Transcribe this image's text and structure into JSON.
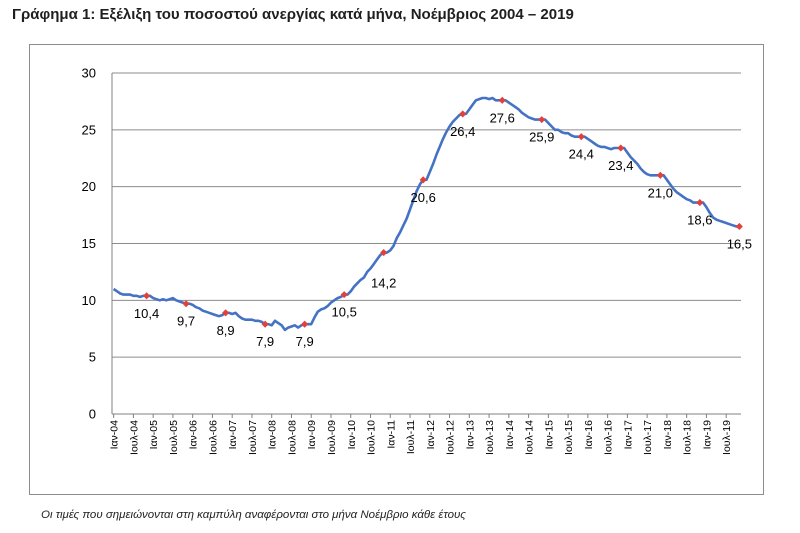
{
  "title": "Γράφημα 1: Εξέλιξη του ποσοστού ανεργίας κατά μήνα, Νοέμβριος 2004 – 2019",
  "note": "Οι τιμές που σημειώνονται στη καμπύλη αναφέρονται στο μήνα Νοέμβριο κάθε έτους",
  "colors": {
    "line": "#4472c4",
    "marker": "#e0413b",
    "grid": "#8c8c8c"
  },
  "chart_data": {
    "type": "line",
    "ylim": [
      0,
      30
    ],
    "yticks": [
      0,
      5,
      10,
      15,
      20,
      25,
      30
    ],
    "grid": true,
    "xtick_labels": [
      "Ιαν-04",
      "Ιουλ-04",
      "Ιαν-05",
      "Ιουλ-05",
      "Ιαν-06",
      "Ιουλ-06",
      "Ιαν-07",
      "Ιουλ-07",
      "Ιαν-08",
      "Ιουλ-08",
      "Ιαν-09",
      "Ιουλ-09",
      "Ιαν-10",
      "Ιουλ-10",
      "Ιαν-11",
      "Ιουλ-11",
      "Ιαν-12",
      "Ιουλ-12",
      "Ιαν-13",
      "Ιουλ-13",
      "Ιαν-14",
      "Ιουλ-14",
      "Ιαν-15",
      "Ιουλ-15",
      "Ιαν-16",
      "Ιουλ-16",
      "Ιαν-17",
      "Ιουλ-17",
      "Ιαν-18",
      "Ιουλ-18",
      "Ιαν-19",
      "Ιουλ-19"
    ],
    "series": [
      {
        "values": [
          11.0,
          10.8,
          10.6,
          10.5,
          10.5,
          10.5,
          10.4,
          10.4,
          10.3,
          10.4,
          10.4,
          10.4,
          10.2,
          10.1,
          10.0,
          10.1,
          10.0,
          10.1,
          10.2,
          10.0,
          9.9,
          9.8,
          9.7,
          9.7,
          9.6,
          9.4,
          9.3,
          9.1,
          9.0,
          8.9,
          8.8,
          8.7,
          8.6,
          8.7,
          8.9,
          8.9,
          8.8,
          8.9,
          8.6,
          8.4,
          8.3,
          8.3,
          8.3,
          8.2,
          8.2,
          8.1,
          7.9,
          7.9,
          7.8,
          8.2,
          8.0,
          7.8,
          7.4,
          7.6,
          7.7,
          7.8,
          7.6,
          7.8,
          7.9,
          7.9,
          7.9,
          8.5,
          9.0,
          9.2,
          9.3,
          9.5,
          9.8,
          10.0,
          10.2,
          10.3,
          10.5,
          10.5,
          10.8,
          11.2,
          11.5,
          11.8,
          12.0,
          12.5,
          12.8,
          13.2,
          13.6,
          14.0,
          14.2,
          14.2,
          14.4,
          14.8,
          15.5,
          16.0,
          16.6,
          17.2,
          18.0,
          18.8,
          19.6,
          20.2,
          20.6,
          20.6,
          21.3,
          22.0,
          22.8,
          23.5,
          24.2,
          24.8,
          25.3,
          25.7,
          26.0,
          26.3,
          26.4,
          26.4,
          26.8,
          27.2,
          27.6,
          27.7,
          27.8,
          27.8,
          27.7,
          27.8,
          27.6,
          27.6,
          27.6,
          27.6,
          27.4,
          27.2,
          27.0,
          26.8,
          26.5,
          26.3,
          26.1,
          26.0,
          25.9,
          25.9,
          25.9,
          25.9,
          25.6,
          25.3,
          25.0,
          25.0,
          24.8,
          24.7,
          24.7,
          24.5,
          24.4,
          24.4,
          24.4,
          24.4,
          24.2,
          24.0,
          23.8,
          23.6,
          23.5,
          23.5,
          23.4,
          23.3,
          23.4,
          23.4,
          23.4,
          23.4,
          23.0,
          22.6,
          22.3,
          22.0,
          21.6,
          21.3,
          21.1,
          21.0,
          21.0,
          21.0,
          21.0,
          21.0,
          20.6,
          20.2,
          19.8,
          19.5,
          19.3,
          19.1,
          18.9,
          18.8,
          18.6,
          18.6,
          18.6,
          18.6,
          18.2,
          17.7,
          17.3,
          17.1,
          17.0,
          16.9,
          16.8,
          16.7,
          16.6,
          16.5,
          16.5
        ]
      }
    ],
    "november_labels": [
      {
        "year": 2004,
        "value": 10.4,
        "label": "10,4"
      },
      {
        "year": 2005,
        "value": 9.7,
        "label": "9,7"
      },
      {
        "year": 2006,
        "value": 8.9,
        "label": "8,9"
      },
      {
        "year": 2007,
        "value": 7.9,
        "label": "7,9"
      },
      {
        "year": 2008,
        "value": 7.9,
        "label": "7,9"
      },
      {
        "year": 2009,
        "value": 10.5,
        "label": "10,5"
      },
      {
        "year": 2010,
        "value": 14.2,
        "label": "14,2"
      },
      {
        "year": 2011,
        "value": 20.6,
        "label": "20,6"
      },
      {
        "year": 2012,
        "value": 26.4,
        "label": "26,4"
      },
      {
        "year": 2013,
        "value": 27.6,
        "label": "27,6"
      },
      {
        "year": 2014,
        "value": 25.9,
        "label": "25,9"
      },
      {
        "year": 2015,
        "value": 24.4,
        "label": "24,4"
      },
      {
        "year": 2016,
        "value": 23.4,
        "label": "23,4"
      },
      {
        "year": 2017,
        "value": 21.0,
        "label": "21,0"
      },
      {
        "year": 2018,
        "value": 18.6,
        "label": "18,6"
      },
      {
        "year": 2019,
        "value": 16.5,
        "label": "16,5"
      }
    ]
  }
}
